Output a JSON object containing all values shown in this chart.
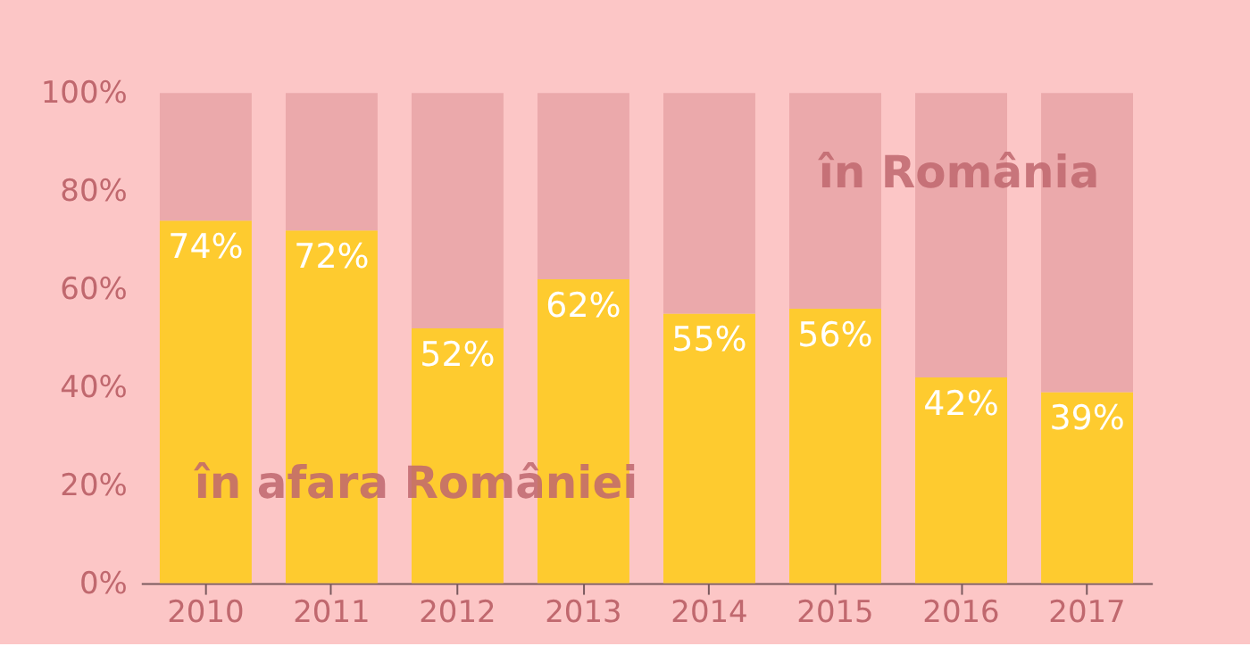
{
  "chart_data": {
    "type": "bar",
    "stacked": true,
    "categories": [
      "2010",
      "2011",
      "2012",
      "2013",
      "2014",
      "2015",
      "2016",
      "2017"
    ],
    "series": [
      {
        "name": "în afara României",
        "color": "#fecb2f",
        "values": [
          74,
          72,
          52,
          62,
          55,
          56,
          42,
          39
        ],
        "value_labels": [
          "74%",
          "72%",
          "52%",
          "62%",
          "55%",
          "56%",
          "42%",
          "39%"
        ]
      },
      {
        "name": "în România",
        "color": "#eba9ab",
        "values": [
          26,
          28,
          48,
          38,
          45,
          44,
          58,
          61
        ]
      }
    ],
    "ylim": [
      0,
      100
    ],
    "yticks": [
      {
        "value": 0,
        "label": "0%"
      },
      {
        "value": 20,
        "label": "20%"
      },
      {
        "value": 40,
        "label": "40%"
      },
      {
        "value": 60,
        "label": "60%"
      },
      {
        "value": 80,
        "label": "80%"
      },
      {
        "value": 100,
        "label": "100%"
      }
    ],
    "grid": false
  }
}
